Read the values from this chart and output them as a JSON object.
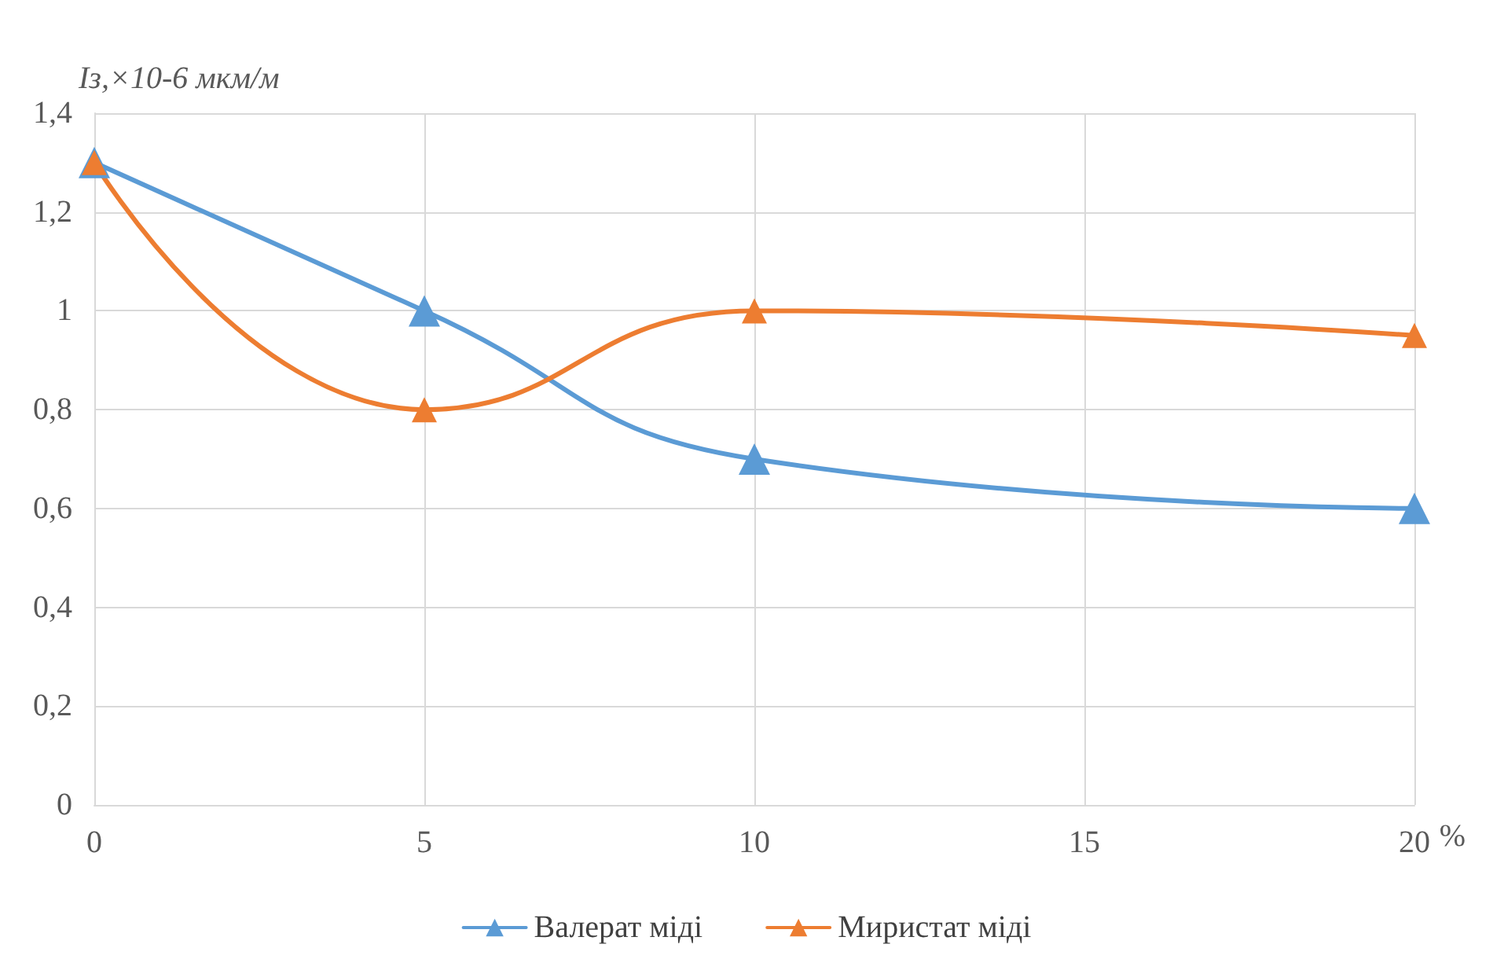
{
  "chart_data": {
    "type": "line",
    "ylabel": "Iз,×10-6 мкм/м",
    "xlabel": "%",
    "x": [
      0,
      5,
      10,
      20
    ],
    "series": [
      {
        "name": "Валерат міді",
        "color": "#5b9bd5",
        "values": [
          1.3,
          1.0,
          0.7,
          0.6
        ]
      },
      {
        "name": "Миристат міді",
        "color": "#ed7d31",
        "values": [
          1.3,
          0.8,
          1.0,
          0.95
        ]
      }
    ],
    "xlim": [
      0,
      20
    ],
    "xticks": [
      0,
      5,
      10,
      15,
      20
    ],
    "ylim": [
      0,
      1.4
    ],
    "yticks": [
      0,
      {
        "value": 0.2,
        "label": "0,2"
      },
      {
        "value": 0.4,
        "label": "0,4"
      },
      {
        "value": 0.6,
        "label": "0,6"
      },
      {
        "value": 0.8,
        "label": "0,8"
      },
      1,
      {
        "value": 1.2,
        "label": "1,2"
      },
      {
        "value": 1.4,
        "label": "1,4"
      }
    ],
    "grid": true,
    "legend": "bottom",
    "marker": "triangle",
    "line_style": "solid"
  }
}
